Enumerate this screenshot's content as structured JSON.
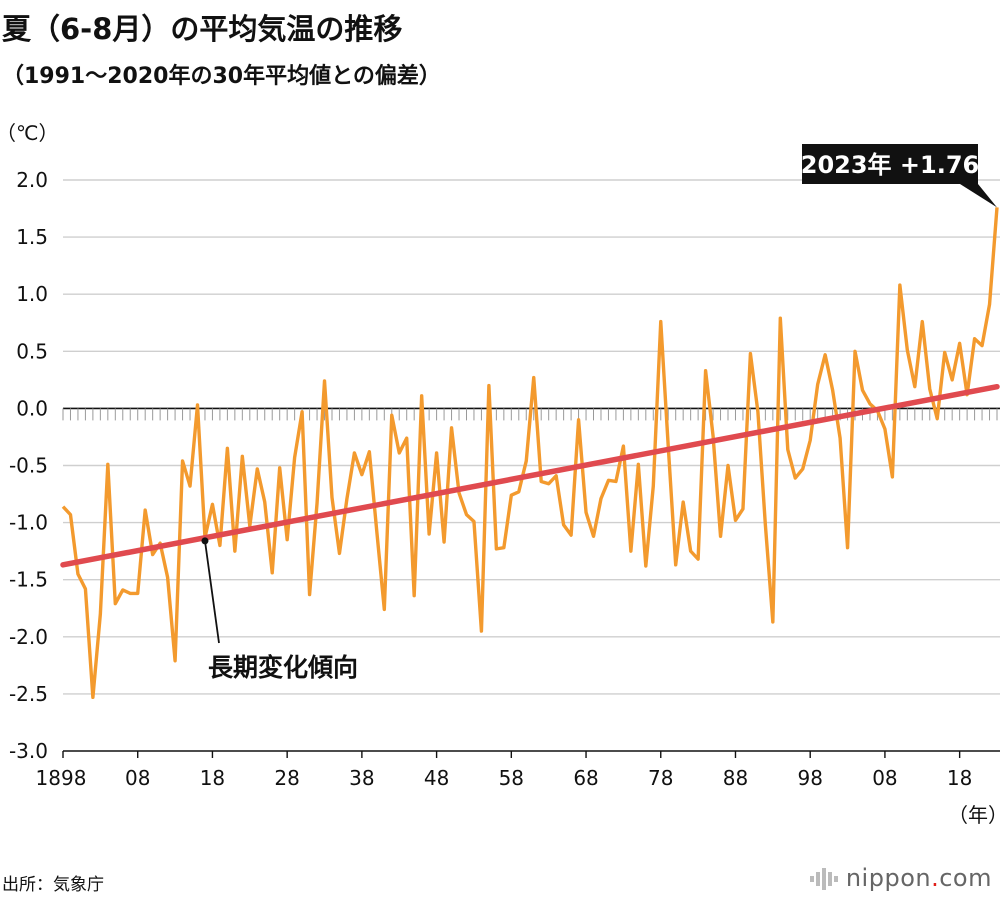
{
  "title": "夏（6-8月）の平均気温の推移",
  "subtitle": "（1991〜2020年の30年平均値との偏差）",
  "source": "出所：気象庁",
  "logo": {
    "text": "nippon",
    "dot": ".",
    "suffix": "com"
  },
  "colors": {
    "series": "#f39a2e",
    "trend": "#e04a4f",
    "grid": "#cfcfcf",
    "callout_bg": "#111111"
  },
  "chart_data": {
    "type": "line",
    "title": "夏（6-8月）の平均気温の推移",
    "subtitle": "（1991〜2020年の30年平均値との偏差）",
    "ylabel": "（℃）",
    "xlabel": "（年）",
    "ylim": [
      -3.0,
      2.0
    ],
    "xlim": [
      1898,
      2023
    ],
    "yticks": [
      "2.0",
      "1.5",
      "1.0",
      "0.5",
      "0.0",
      "-0.5",
      "-1.0",
      "-1.5",
      "-2.0",
      "-2.5",
      "-3.0"
    ],
    "xtick_years": [
      1898,
      1908,
      1918,
      1928,
      1938,
      1948,
      1958,
      1968,
      1978,
      1988,
      1998,
      2008,
      2018
    ],
    "xticks": [
      "1898",
      "08",
      "18",
      "28",
      "38",
      "48",
      "58",
      "68",
      "78",
      "88",
      "98",
      "08",
      "18"
    ],
    "series": [
      {
        "name": "偏差",
        "start_year": 1898,
        "values": [
          -0.86,
          -0.93,
          -1.45,
          -1.58,
          -2.53,
          -1.8,
          -0.49,
          -1.71,
          -1.59,
          -1.62,
          -1.62,
          -0.89,
          -1.28,
          -1.18,
          -1.48,
          -2.21,
          -0.46,
          -0.68,
          0.03,
          -1.13,
          -0.84,
          -1.2,
          -0.35,
          -1.25,
          -0.42,
          -1.03,
          -0.53,
          -0.82,
          -1.44,
          -0.52,
          -1.15,
          -0.43,
          -0.03,
          -1.63,
          -0.83,
          0.24,
          -0.78,
          -1.27,
          -0.79,
          -0.39,
          -0.58,
          -0.38,
          -1.08,
          -1.76,
          -0.06,
          -0.39,
          -0.26,
          -1.64,
          0.11,
          -1.1,
          -0.39,
          -1.17,
          -0.17,
          -0.74,
          -0.93,
          -0.99,
          -1.95,
          0.2,
          -1.23,
          -1.22,
          -0.76,
          -0.73,
          -0.46,
          0.27,
          -0.64,
          -0.66,
          -0.59,
          -1.02,
          -1.11,
          -0.1,
          -0.91,
          -1.12,
          -0.79,
          -0.63,
          -0.64,
          -0.33,
          -1.25,
          -0.49,
          -1.38,
          -0.68,
          0.76,
          -0.33,
          -1.37,
          -0.82,
          -1.25,
          -1.32,
          0.33,
          -0.24,
          -1.12,
          -0.5,
          -0.98,
          -0.88,
          0.48,
          -0.03,
          -1.02,
          -1.87,
          0.79,
          -0.36,
          -0.61,
          -0.53,
          -0.28,
          0.21,
          0.47,
          0.16,
          -0.26,
          -1.22,
          0.5,
          0.16,
          0.04,
          -0.02,
          -0.18,
          -0.6,
          1.08,
          0.51,
          0.19,
          0.76,
          0.17,
          -0.09,
          0.49,
          0.25,
          0.57,
          0.12,
          0.61,
          0.55,
          0.91,
          1.76
        ]
      },
      {
        "name": "長期変化傾向",
        "x": [
          1898,
          2023
        ],
        "values": [
          -1.37,
          0.19
        ]
      }
    ],
    "annotations": [
      {
        "text": "長期変化傾向",
        "points_to": {
          "year": 1917,
          "value": -1.16
        }
      },
      {
        "text": "2023年 +1.76",
        "year": 2023,
        "value": 1.76
      }
    ]
  }
}
